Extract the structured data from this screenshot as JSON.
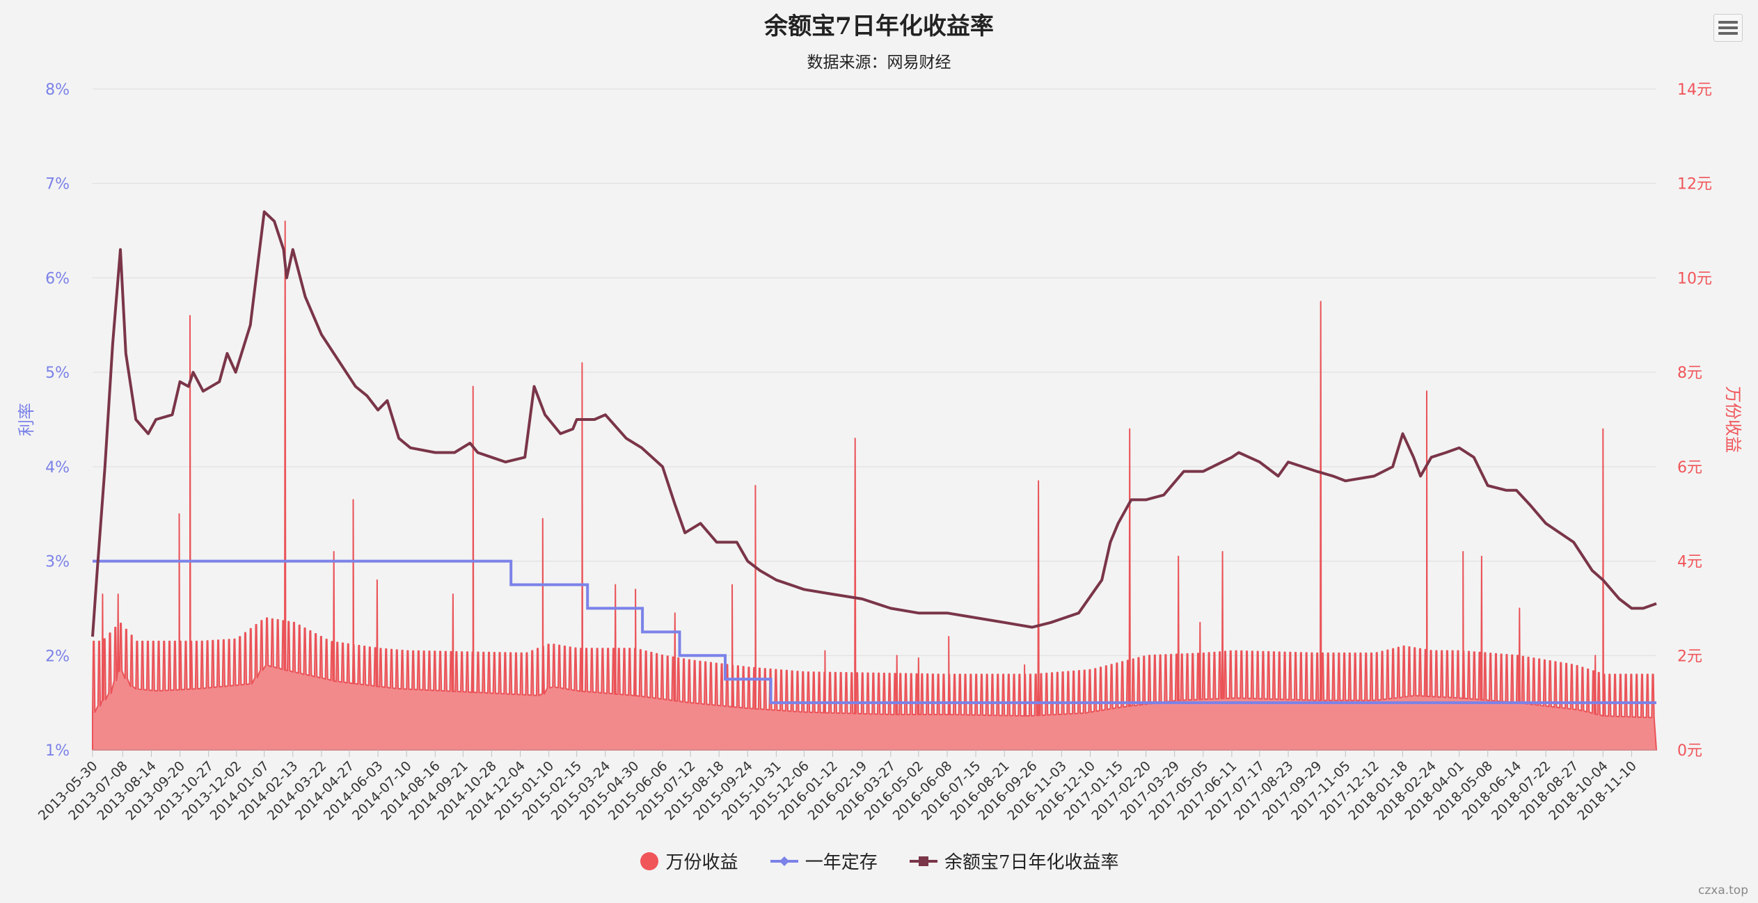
{
  "chart_title": "余额宝7日年化收益率",
  "chart_subtitle": "数据来源：网易财经",
  "credit": "czxa.top",
  "chart_data": {
    "type": "line",
    "title": "余额宝7日年化收益率",
    "subtitle": "数据来源：网易财经",
    "y_left": {
      "label": "利率",
      "ticks": [
        "1%",
        "2%",
        "3%",
        "4%",
        "5%",
        "6%",
        "7%",
        "8%"
      ],
      "range": [
        1,
        8
      ],
      "unit": "%",
      "color": "#7b82e8"
    },
    "y_right": {
      "label": "万份收益",
      "ticks": [
        "0元",
        "2元",
        "4元",
        "6元",
        "8元",
        "10元",
        "12元",
        "14元"
      ],
      "range": [
        0,
        14
      ],
      "unit": "元",
      "color": "#f0555a"
    },
    "x_tick_labels": [
      "2013-05-30",
      "2013-07-08",
      "2013-08-14",
      "2013-09-20",
      "2013-10-27",
      "2013-12-02",
      "2014-01-07",
      "2014-02-13",
      "2014-03-22",
      "2014-04-27",
      "2014-06-03",
      "2014-07-10",
      "2014-08-16",
      "2014-09-21",
      "2014-10-28",
      "2014-12-04",
      "2015-01-10",
      "2015-02-15",
      "2015-03-24",
      "2015-04-30",
      "2015-06-06",
      "2015-07-12",
      "2015-08-18",
      "2015-09-24",
      "2015-10-31",
      "2015-12-06",
      "2016-01-12",
      "2016-02-19",
      "2016-03-27",
      "2016-05-02",
      "2016-06-08",
      "2016-07-15",
      "2016-08-21",
      "2016-09-26",
      "2016-11-03",
      "2016-12-10",
      "2017-01-15",
      "2017-02-20",
      "2017-03-29",
      "2017-05-05",
      "2017-06-11",
      "2017-07-17",
      "2017-08-23",
      "2017-09-29",
      "2017-11-05",
      "2017-12-12",
      "2018-01-18",
      "2018-02-24",
      "2018-04-01",
      "2018-05-08",
      "2018-06-14",
      "2018-07-22",
      "2018-08-27",
      "2018-10-04",
      "2018-11-10"
    ],
    "x_range": [
      "2013-05-30",
      "2018-12-12"
    ],
    "grid": true,
    "legend_position": "bottom-center",
    "series": [
      {
        "name": "万份收益",
        "type": "area",
        "axis": "right",
        "color": "#f0555a",
        "baseline_points": [
          [
            "2013-05-30",
            0.8
          ],
          [
            "2013-06-20",
            1.2
          ],
          [
            "2013-07-03",
            1.7
          ],
          [
            "2013-07-20",
            1.3
          ],
          [
            "2013-08-20",
            1.25
          ],
          [
            "2013-10-15",
            1.3
          ],
          [
            "2013-12-20",
            1.4
          ],
          [
            "2014-01-07",
            1.8
          ],
          [
            "2014-02-13",
            1.65
          ],
          [
            "2014-04-10",
            1.45
          ],
          [
            "2014-06-25",
            1.3
          ],
          [
            "2014-10-30",
            1.2
          ],
          [
            "2014-12-30",
            1.15
          ],
          [
            "2015-01-10",
            1.35
          ],
          [
            "2015-02-15",
            1.25
          ],
          [
            "2015-05-01",
            1.15
          ],
          [
            "2015-07-10",
            1.0
          ],
          [
            "2015-09-24",
            0.88
          ],
          [
            "2015-12-06",
            0.8
          ],
          [
            "2016-03-27",
            0.75
          ],
          [
            "2016-06-08",
            0.75
          ],
          [
            "2016-09-20",
            0.72
          ],
          [
            "2016-12-01",
            0.78
          ],
          [
            "2017-01-15",
            0.9
          ],
          [
            "2017-04-01",
            1.05
          ],
          [
            "2017-06-15",
            1.1
          ],
          [
            "2017-09-29",
            1.05
          ],
          [
            "2017-12-12",
            1.05
          ],
          [
            "2018-02-01",
            1.15
          ],
          [
            "2018-04-01",
            1.1
          ],
          [
            "2018-06-14",
            1.0
          ],
          [
            "2018-09-01",
            0.85
          ],
          [
            "2018-10-04",
            0.72
          ],
          [
            "2018-12-12",
            0.68
          ]
        ],
        "weekend_tops": [
          [
            "2013-06-10",
            2.3
          ],
          [
            "2013-07-03",
            2.7
          ],
          [
            "2013-07-25",
            2.3
          ],
          [
            "2013-09-01",
            2.3
          ],
          [
            "2013-10-15",
            2.3
          ],
          [
            "2013-12-01",
            2.35
          ],
          [
            "2014-01-07",
            2.8
          ],
          [
            "2014-02-13",
            2.7
          ],
          [
            "2014-04-01",
            2.3
          ],
          [
            "2014-06-03",
            2.15
          ],
          [
            "2014-07-10",
            2.1
          ],
          [
            "2014-12-10",
            2.05
          ],
          [
            "2015-01-10",
            2.25
          ],
          [
            "2015-02-15",
            2.15
          ],
          [
            "2015-04-30",
            2.15
          ],
          [
            "2015-06-06",
            2.0
          ],
          [
            "2015-07-12",
            1.9
          ],
          [
            "2015-09-24",
            1.75
          ],
          [
            "2015-12-06",
            1.65
          ],
          [
            "2016-06-08",
            1.6
          ],
          [
            "2016-09-26",
            1.6
          ],
          [
            "2016-12-10",
            1.7
          ],
          [
            "2017-01-15",
            1.85
          ],
          [
            "2017-02-20",
            2.0
          ],
          [
            "2017-05-05",
            2.05
          ],
          [
            "2017-06-11",
            2.1
          ],
          [
            "2017-09-29",
            2.05
          ],
          [
            "2017-12-12",
            2.05
          ],
          [
            "2018-01-18",
            2.2
          ],
          [
            "2018-02-24",
            2.1
          ],
          [
            "2018-04-01",
            2.1
          ],
          [
            "2018-06-14",
            2.0
          ],
          [
            "2018-08-27",
            1.8
          ],
          [
            "2018-10-04",
            1.6
          ],
          [
            "2018-12-12",
            1.6
          ]
        ],
        "holiday_spikes": [
          [
            "2013-06-12",
            3.3
          ],
          [
            "2013-07-02",
            3.3
          ],
          [
            "2013-09-19",
            5.0
          ],
          [
            "2013-10-03",
            9.2
          ],
          [
            "2014-02-03",
            11.2
          ],
          [
            "2014-04-07",
            4.2
          ],
          [
            "2014-05-02",
            5.3
          ],
          [
            "2014-06-02",
            3.6
          ],
          [
            "2014-09-08",
            3.3
          ],
          [
            "2014-10-04",
            7.7
          ],
          [
            "2015-01-02",
            4.9
          ],
          [
            "2015-02-22",
            8.2
          ],
          [
            "2015-04-06",
            3.5
          ],
          [
            "2015-05-02",
            3.4
          ],
          [
            "2015-06-22",
            2.9
          ],
          [
            "2015-09-04",
            3.5
          ],
          [
            "2015-10-04",
            5.6
          ],
          [
            "2016-01-02",
            2.1
          ],
          [
            "2016-02-10",
            6.6
          ],
          [
            "2016-04-04",
            2.0
          ],
          [
            "2016-05-02",
            1.95
          ],
          [
            "2016-06-10",
            2.4
          ],
          [
            "2016-09-16",
            1.8
          ],
          [
            "2016-10-04",
            5.7
          ],
          [
            "2017-01-30",
            6.8
          ],
          [
            "2017-04-03",
            4.1
          ],
          [
            "2017-05-01",
            2.7
          ],
          [
            "2017-05-30",
            4.2
          ],
          [
            "2017-10-04",
            9.5
          ],
          [
            "2018-02-18",
            7.6
          ],
          [
            "2018-04-06",
            4.2
          ],
          [
            "2018-04-30",
            4.1
          ],
          [
            "2018-06-18",
            3.0
          ],
          [
            "2018-09-24",
            2.0
          ],
          [
            "2018-10-04",
            6.8
          ]
        ]
      },
      {
        "name": "一年定存",
        "type": "step",
        "axis": "left",
        "color": "#7b82e8",
        "points": [
          [
            "2013-05-30",
            3.0
          ],
          [
            "2014-11-22",
            3.0
          ],
          [
            "2014-11-22",
            2.75
          ],
          [
            "2015-03-01",
            2.75
          ],
          [
            "2015-03-01",
            2.5
          ],
          [
            "2015-05-11",
            2.5
          ],
          [
            "2015-05-11",
            2.25
          ],
          [
            "2015-06-28",
            2.25
          ],
          [
            "2015-06-28",
            2.0
          ],
          [
            "2015-08-26",
            2.0
          ],
          [
            "2015-08-26",
            1.75
          ],
          [
            "2015-10-24",
            1.75
          ],
          [
            "2015-10-24",
            1.5
          ],
          [
            "2018-12-12",
            1.5
          ]
        ]
      },
      {
        "name": "余额宝7日年化收益率",
        "type": "line",
        "axis": "left",
        "color": "#7a3548",
        "points": [
          [
            "2013-05-30",
            2.2
          ],
          [
            "2013-06-05",
            2.9
          ],
          [
            "2013-06-15",
            4.0
          ],
          [
            "2013-06-25",
            5.3
          ],
          [
            "2013-07-05",
            6.3
          ],
          [
            "2013-07-12",
            5.2
          ],
          [
            "2013-07-25",
            4.5
          ],
          [
            "2013-08-10",
            4.35
          ],
          [
            "2013-08-20",
            4.5
          ],
          [
            "2013-09-10",
            4.55
          ],
          [
            "2013-09-20",
            4.9
          ],
          [
            "2013-10-01",
            4.85
          ],
          [
            "2013-10-07",
            5.0
          ],
          [
            "2013-10-20",
            4.8
          ],
          [
            "2013-11-10",
            4.9
          ],
          [
            "2013-11-20",
            5.2
          ],
          [
            "2013-12-01",
            5.0
          ],
          [
            "2013-12-20",
            5.5
          ],
          [
            "2014-01-01",
            6.3
          ],
          [
            "2014-01-07",
            6.7
          ],
          [
            "2014-01-20",
            6.6
          ],
          [
            "2014-02-01",
            6.3
          ],
          [
            "2014-02-05",
            6.0
          ],
          [
            "2014-02-13",
            6.3
          ],
          [
            "2014-03-01",
            5.8
          ],
          [
            "2014-03-22",
            5.4
          ],
          [
            "2014-04-15",
            5.1
          ],
          [
            "2014-05-05",
            4.85
          ],
          [
            "2014-05-20",
            4.75
          ],
          [
            "2014-06-03",
            4.6
          ],
          [
            "2014-06-15",
            4.7
          ],
          [
            "2014-06-30",
            4.3
          ],
          [
            "2014-07-15",
            4.2
          ],
          [
            "2014-08-16",
            4.15
          ],
          [
            "2014-09-10",
            4.15
          ],
          [
            "2014-09-30",
            4.25
          ],
          [
            "2014-10-10",
            4.15
          ],
          [
            "2014-10-28",
            4.1
          ],
          [
            "2014-11-15",
            4.05
          ],
          [
            "2014-12-10",
            4.1
          ],
          [
            "2014-12-22",
            4.85
          ],
          [
            "2015-01-05",
            4.55
          ],
          [
            "2015-01-25",
            4.35
          ],
          [
            "2015-02-10",
            4.4
          ],
          [
            "2015-02-15",
            4.5
          ],
          [
            "2015-03-10",
            4.5
          ],
          [
            "2015-03-24",
            4.55
          ],
          [
            "2015-04-20",
            4.3
          ],
          [
            "2015-05-10",
            4.2
          ],
          [
            "2015-06-06",
            4.0
          ],
          [
            "2015-06-22",
            3.6
          ],
          [
            "2015-07-05",
            3.3
          ],
          [
            "2015-07-25",
            3.4
          ],
          [
            "2015-08-15",
            3.2
          ],
          [
            "2015-09-10",
            3.2
          ],
          [
            "2015-09-24",
            3.0
          ],
          [
            "2015-10-10",
            2.9
          ],
          [
            "2015-10-31",
            2.8
          ],
          [
            "2015-12-06",
            2.7
          ],
          [
            "2016-01-12",
            2.65
          ],
          [
            "2016-02-19",
            2.6
          ],
          [
            "2016-03-27",
            2.5
          ],
          [
            "2016-05-02",
            2.45
          ],
          [
            "2016-06-08",
            2.45
          ],
          [
            "2016-07-15",
            2.4
          ],
          [
            "2016-08-21",
            2.35
          ],
          [
            "2016-09-26",
            2.3
          ],
          [
            "2016-10-20",
            2.35
          ],
          [
            "2016-11-25",
            2.45
          ],
          [
            "2016-12-25",
            2.8
          ],
          [
            "2017-01-05",
            3.2
          ],
          [
            "2017-01-15",
            3.4
          ],
          [
            "2017-02-01",
            3.65
          ],
          [
            "2017-02-20",
            3.65
          ],
          [
            "2017-03-15",
            3.7
          ],
          [
            "2017-04-10",
            3.95
          ],
          [
            "2017-05-05",
            3.95
          ],
          [
            "2017-06-11",
            4.1
          ],
          [
            "2017-06-20",
            4.15
          ],
          [
            "2017-07-17",
            4.05
          ],
          [
            "2017-08-10",
            3.9
          ],
          [
            "2017-08-23",
            4.05
          ],
          [
            "2017-09-29",
            3.95
          ],
          [
            "2017-10-20",
            3.9
          ],
          [
            "2017-11-05",
            3.85
          ],
          [
            "2017-12-12",
            3.9
          ],
          [
            "2018-01-05",
            4.0
          ],
          [
            "2018-01-18",
            4.35
          ],
          [
            "2018-02-01",
            4.1
          ],
          [
            "2018-02-10",
            3.9
          ],
          [
            "2018-02-24",
            4.1
          ],
          [
            "2018-03-15",
            4.15
          ],
          [
            "2018-04-01",
            4.2
          ],
          [
            "2018-04-20",
            4.1
          ],
          [
            "2018-05-08",
            3.8
          ],
          [
            "2018-06-01",
            3.75
          ],
          [
            "2018-06-14",
            3.75
          ],
          [
            "2018-07-01",
            3.6
          ],
          [
            "2018-07-22",
            3.4
          ],
          [
            "2018-08-27",
            3.2
          ],
          [
            "2018-09-20",
            2.9
          ],
          [
            "2018-10-04",
            2.8
          ],
          [
            "2018-10-25",
            2.6
          ],
          [
            "2018-11-10",
            2.5
          ],
          [
            "2018-11-25",
            2.5
          ],
          [
            "2018-12-12",
            2.55
          ]
        ]
      }
    ]
  }
}
